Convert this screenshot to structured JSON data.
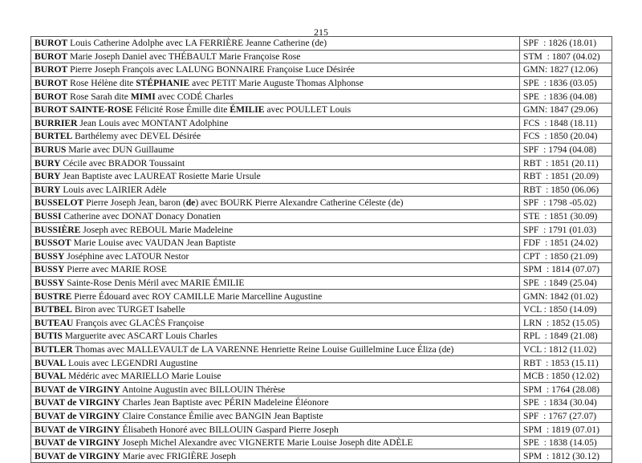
{
  "page_number": "215",
  "rows": [
    {
      "name": [
        {
          "t": "BUROT",
          "b": true
        },
        {
          "t": " Louis Catherine Adolphe avec LA FERRIÈRE Jeanne Catherine (de)",
          "b": false
        }
      ],
      "date": "SPF  : 1826 (18.01)"
    },
    {
      "name": [
        {
          "t": "BUROT",
          "b": true
        },
        {
          "t": " Marie Joseph Daniel avec THÉBAULT Marie Françoise Rose",
          "b": false
        }
      ],
      "date": "STM  : 1807 (04.02)"
    },
    {
      "name": [
        {
          "t": "BUROT",
          "b": true
        },
        {
          "t": " Pierre Joseph François avec LALUNG BONNAIRE Françoise Luce Désirée",
          "b": false
        }
      ],
      "date": "GMN: 1827 (12.06)"
    },
    {
      "name": [
        {
          "t": "BUROT",
          "b": true
        },
        {
          "t": " Rose Hélène dite ",
          "b": false
        },
        {
          "t": "STÉPHANIE",
          "b": true
        },
        {
          "t": " avec PETIT Marie Auguste Thomas Alphonse",
          "b": false
        }
      ],
      "date": "SPE  : 1836 (03.05)"
    },
    {
      "name": [
        {
          "t": "BUROT",
          "b": true
        },
        {
          "t": " Rose Sarah dite ",
          "b": false
        },
        {
          "t": "MIMI",
          "b": true
        },
        {
          "t": " avec CODÉ Charles",
          "b": false
        }
      ],
      "date": "SPE  : 1836 (04.08)"
    },
    {
      "name": [
        {
          "t": "BUROT SAINTE-ROSE",
          "b": true
        },
        {
          "t": " Félicité Rose Émille dite ",
          "b": false
        },
        {
          "t": "ÉMILIE",
          "b": true
        },
        {
          "t": " avec POULLET Louis",
          "b": false
        }
      ],
      "date": "GMN: 1847 (29.06)"
    },
    {
      "name": [
        {
          "t": "BURRIER",
          "b": true
        },
        {
          "t": " Jean Louis avec MONTANT Adolphine",
          "b": false
        }
      ],
      "date": "FCS  : 1848 (18.11)"
    },
    {
      "name": [
        {
          "t": "BURTEL",
          "b": true
        },
        {
          "t": " Barthélemy avec DEVEL Désirée",
          "b": false
        }
      ],
      "date": "FCS  : 1850 (20.04)"
    },
    {
      "name": [
        {
          "t": "BURUS",
          "b": true
        },
        {
          "t": " Marie avec DUN Guillaume",
          "b": false
        }
      ],
      "date": "SPF  : 1794 (04.08)"
    },
    {
      "name": [
        {
          "t": "BURY",
          "b": true
        },
        {
          "t": " Cécile avec BRADOR Toussaint",
          "b": false
        }
      ],
      "date": "RBT  : 1851 (20.11)"
    },
    {
      "name": [
        {
          "t": "BURY",
          "b": true
        },
        {
          "t": " Jean Baptiste avec LAUREAT Rosiette Marie Ursule",
          "b": false
        }
      ],
      "date": "RBT  : 1851 (20.09)"
    },
    {
      "name": [
        {
          "t": "BURY",
          "b": true
        },
        {
          "t": " Louis avec LAIRIER Adèle",
          "b": false
        }
      ],
      "date": "RBT  : 1850 (06.06)"
    },
    {
      "name": [
        {
          "t": "BUSSELOT",
          "b": true
        },
        {
          "t": " Pierre Joseph Jean, baron (",
          "b": false
        },
        {
          "t": "de",
          "b": true
        },
        {
          "t": ") avec BOURK Pierre Alexandre Catherine Céleste (de)",
          "b": false
        }
      ],
      "date": "SPF  : 1798 -05.02)"
    },
    {
      "name": [
        {
          "t": "BUSSI",
          "b": true
        },
        {
          "t": " Catherine avec DONAT Donacy Donatien",
          "b": false
        }
      ],
      "date": "STE  : 1851 (30.09)"
    },
    {
      "name": [
        {
          "t": "BUSSIÈRE",
          "b": true
        },
        {
          "t": " Joseph avec REBOUL Marie Madeleine",
          "b": false
        }
      ],
      "date": "SPF  : 1791 (01.03)"
    },
    {
      "name": [
        {
          "t": "BUSSOT",
          "b": true
        },
        {
          "t": " Marie Louise avec VAUDAN Jean Baptiste",
          "b": false
        }
      ],
      "date": "FDF  : 1851 (24.02)"
    },
    {
      "name": [
        {
          "t": "BUSSY",
          "b": true
        },
        {
          "t": " Joséphine avec LATOUR Nestor",
          "b": false
        }
      ],
      "date": "CPT  : 1850 (21.09)"
    },
    {
      "name": [
        {
          "t": "BUSSY",
          "b": true
        },
        {
          "t": " Pierre avec MARIE ROSE",
          "b": false
        }
      ],
      "date": "SPM  : 1814 (07.07)"
    },
    {
      "name": [
        {
          "t": "BUSSY",
          "b": true
        },
        {
          "t": " Sainte-Rose Denis Méril avec MARIE ÉMILIE",
          "b": false
        }
      ],
      "date": "SPE  : 1849 (25.04)"
    },
    {
      "name": [
        {
          "t": "BUSTRE",
          "b": true
        },
        {
          "t": " Pierre Édouard avec ROY CAMILLE Marie Marcelline Augustine",
          "b": false
        }
      ],
      "date": "GMN: 1842 (01.02)"
    },
    {
      "name": [
        {
          "t": "BUTBEL",
          "b": true
        },
        {
          "t": " Biron avec TURGET Isabelle",
          "b": false
        }
      ],
      "date": "VCL : 1850 (14.09)"
    },
    {
      "name": [
        {
          "t": "BUTEAU",
          "b": true
        },
        {
          "t": " François avec GLACÈS Françoise",
          "b": false
        }
      ],
      "date": "LRN  : 1852 (15.05)"
    },
    {
      "name": [
        {
          "t": "BUTIS",
          "b": true
        },
        {
          "t": " Marguerite avec ASCART Louis Charles",
          "b": false
        }
      ],
      "date": "RPL  : 1849 (21.08)"
    },
    {
      "name": [
        {
          "t": "BUTLER",
          "b": true
        },
        {
          "t": " Thomas avec MALLEVAULT de LA VARENNE Henriette Reine Louise Guillelmine Luce Éliza (de)",
          "b": false
        }
      ],
      "date": "VCL : 1812 (11.02)"
    },
    {
      "name": [
        {
          "t": "BUVAL",
          "b": true
        },
        {
          "t": " Louis avec LEGENDRI Augustine",
          "b": false
        }
      ],
      "date": "RBT  : 1853 (15.11)"
    },
    {
      "name": [
        {
          "t": "BUVAL",
          "b": true
        },
        {
          "t": " Médéric avec MARIELLO Marie Louise",
          "b": false
        }
      ],
      "date": "MCB : 1850 (12.02)"
    },
    {
      "name": [
        {
          "t": "BUVAT de VIRGINY",
          "b": true
        },
        {
          "t": " Antoine Augustin avec BILLOUIN Thérèse",
          "b": false
        }
      ],
      "date": "SPM  : 1764 (28.08)"
    },
    {
      "name": [
        {
          "t": "BUVAT de VIRGINY",
          "b": true
        },
        {
          "t": " Charles Jean Baptiste avec PÉRIN Madeleine Éléonore",
          "b": false
        }
      ],
      "date": "SPE  : 1834 (30.04)"
    },
    {
      "name": [
        {
          "t": "BUVAT de VIRGINY",
          "b": true
        },
        {
          "t": " Claire Constance Émilie avec BANGIN Jean Baptiste",
          "b": false
        }
      ],
      "date": "SPF  : 1767 (27.07)"
    },
    {
      "name": [
        {
          "t": "BUVAT de VIRGINY",
          "b": true
        },
        {
          "t": " Élisabeth Honoré avec BILLOUIN Gaspard Pierre Joseph",
          "b": false
        }
      ],
      "date": "SPM  : 1819 (07.01)"
    },
    {
      "name": [
        {
          "t": "BUVAT de VIRGINY",
          "b": true
        },
        {
          "t": " Joseph Michel Alexandre avec VIGNERTE Marie Louise Joseph dite ADÈLE",
          "b": false
        }
      ],
      "date": "SPE  : 1838 (14.05)"
    },
    {
      "name": [
        {
          "t": "BUVAT de VIRGINY",
          "b": true
        },
        {
          "t": " Marie avec FRIGIÈRE Joseph",
          "b": false
        }
      ],
      "date": "SPM  : 1812 (30.12)"
    }
  ]
}
